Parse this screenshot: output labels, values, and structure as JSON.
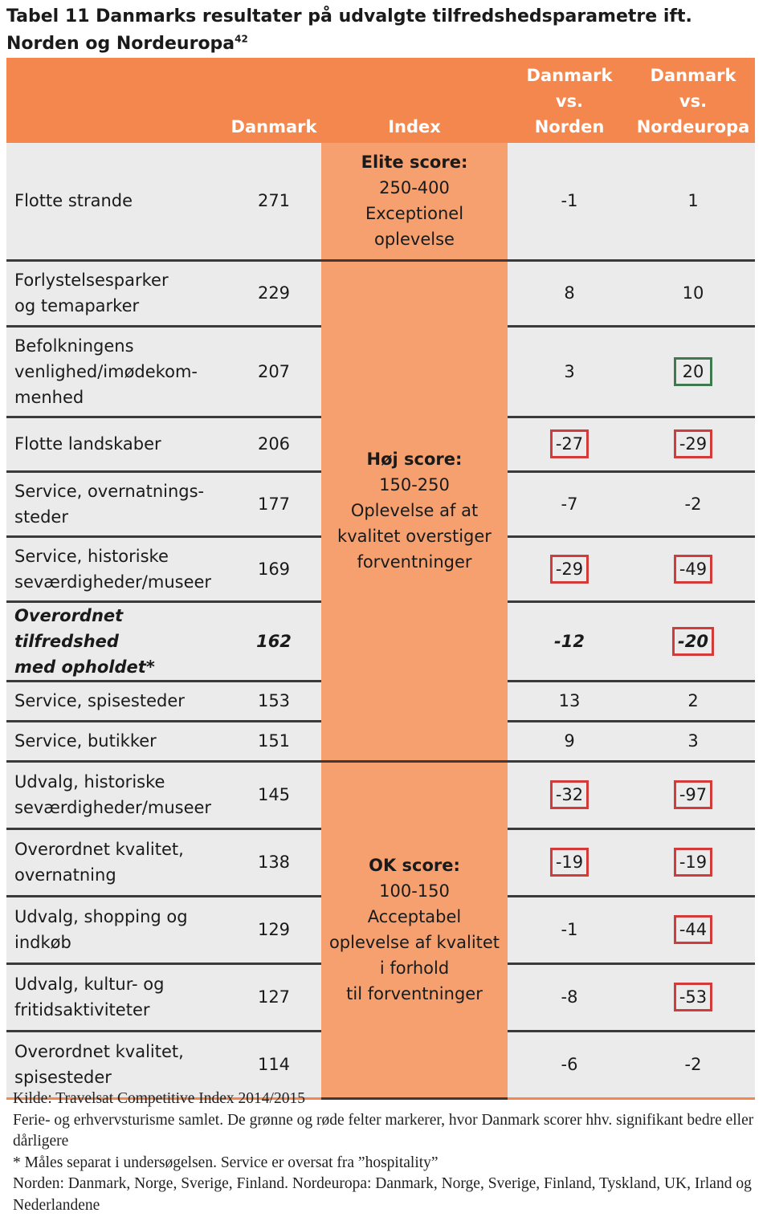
{
  "title": {
    "text": "Tabel 11 Danmarks resultater på udvalgte tilfredshedsparametre ift. Norden og Nordeuropa",
    "footnote_ref": "42"
  },
  "headers": {
    "col1": "",
    "col2": "Danmark",
    "col3": "Index",
    "col4": [
      "Danmark",
      "vs.",
      "Norden"
    ],
    "col5": [
      "Danmark",
      "vs.",
      "Nordeuropa"
    ]
  },
  "index_bands": [
    {
      "label": "Elite score:",
      "lines": [
        "250-400",
        "Exceptionel",
        "oplevelse"
      ]
    },
    {
      "label": "Høj score:",
      "lines": [
        "150-250",
        "Oplevelse af at",
        "kvalitet overstiger",
        "forventninger"
      ]
    },
    {
      "label": "OK score:",
      "lines": [
        "100-150",
        "Acceptabel",
        "oplevelse af kvalitet",
        "i forhold",
        "til forventninger"
      ]
    }
  ],
  "rows": [
    {
      "name": [
        "Flotte strande"
      ],
      "dk": "271",
      "norden": "-1",
      "norden_mark": "",
      "nordeuropa": "1",
      "nordeuropa_mark": ""
    },
    {
      "name": [
        "Forlystelsesparker",
        "og temaparker"
      ],
      "dk": "229",
      "norden": "8",
      "norden_mark": "",
      "nordeuropa": "10",
      "nordeuropa_mark": ""
    },
    {
      "name": [
        "Befolkningens",
        "venlighed/imødekom-",
        "menhed"
      ],
      "dk": "207",
      "norden": "3",
      "norden_mark": "",
      "nordeuropa": "20",
      "nordeuropa_mark": "green"
    },
    {
      "name": [
        "Flotte landskaber"
      ],
      "dk": "206",
      "norden": "-27",
      "norden_mark": "red",
      "nordeuropa": "-29",
      "nordeuropa_mark": "red"
    },
    {
      "name": [
        "Service, overnatnings-",
        "steder"
      ],
      "dk": "177",
      "norden": "-7",
      "norden_mark": "",
      "nordeuropa": "-2",
      "nordeuropa_mark": ""
    },
    {
      "name": [
        "Service, historiske",
        "seværdigheder/museer"
      ],
      "dk": "169",
      "norden": "-29",
      "norden_mark": "red",
      "nordeuropa": "-49",
      "nordeuropa_mark": "red"
    },
    {
      "name": [
        "Overordnet tilfredshed",
        "med opholdet*"
      ],
      "dk": "162",
      "norden": "-12",
      "norden_mark": "",
      "nordeuropa": "-20",
      "nordeuropa_mark": "red"
    },
    {
      "name": [
        "Service, spisesteder"
      ],
      "dk": "153",
      "norden": "13",
      "norden_mark": "",
      "nordeuropa": "2",
      "nordeuropa_mark": ""
    },
    {
      "name": [
        "Service, butikker"
      ],
      "dk": "151",
      "norden": "9",
      "norden_mark": "",
      "nordeuropa": "3",
      "nordeuropa_mark": ""
    },
    {
      "name": [
        "Udvalg, historiske",
        "seværdigheder/museer"
      ],
      "dk": "145",
      "norden": "-32",
      "norden_mark": "red",
      "nordeuropa": "-97",
      "nordeuropa_mark": "red"
    },
    {
      "name": [
        "Overordnet kvalitet,",
        "overnatning"
      ],
      "dk": "138",
      "norden": "-19",
      "norden_mark": "red",
      "nordeuropa": "-19",
      "nordeuropa_mark": "red"
    },
    {
      "name": [
        "Udvalg, shopping og",
        "indkøb"
      ],
      "dk": "129",
      "norden": "-1",
      "norden_mark": "",
      "nordeuropa": "-44",
      "nordeuropa_mark": "red"
    },
    {
      "name": [
        "Udvalg, kultur- og",
        "fritidsaktiviteter"
      ],
      "dk": "127",
      "norden": "-8",
      "norden_mark": "",
      "nordeuropa": "-53",
      "nordeuropa_mark": "red"
    },
    {
      "name": [
        "Overordnet kvalitet,",
        "spisesteder"
      ],
      "dk": "114",
      "norden": "-6",
      "norden_mark": "",
      "nordeuropa": "-2",
      "nordeuropa_mark": ""
    }
  ],
  "notes": [
    "Kilde: Travelsat Competitive Index 2014/2015",
    "Ferie- og erhvervsturisme samlet. De grønne og røde felter markerer, hvor Danmark scorer hhv. signifikant bedre eller dårligere",
    "* Måles separat i undersøgelsen. Service er oversat fra ”hospitality”",
    "Norden: Danmark, Norge, Sverige, Finland. Nordeuropa: Danmark, Norge, Sverige, Finland, Tyskland, UK, Irland og Nederlandene"
  ],
  "colors": {
    "header_orange": "#f4874e",
    "index_orange": "#f6a06f",
    "row_gray": "#ebebeb",
    "mark_red": "#d33b3b",
    "mark_green": "#3d7a4f"
  }
}
